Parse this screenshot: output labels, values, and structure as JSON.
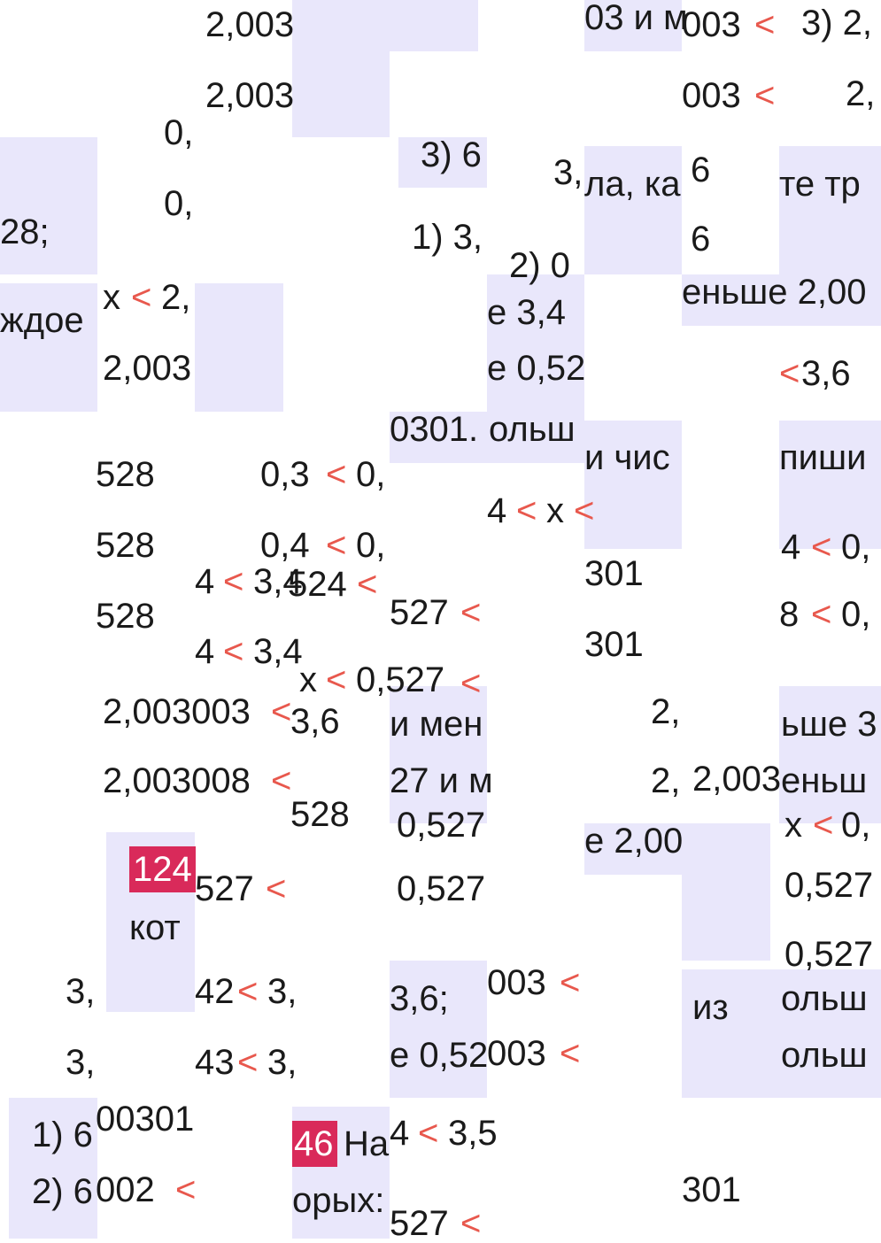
{
  "fragments": {
    "f1": "2,003",
    "f2": "2,003",
    "f3": "3) 6",
    "f4": "03 и м",
    "f5": "003",
    "f6": "<",
    "f7": "3) 2,",
    "f8": "003",
    "f9": "<",
    "f10": "2,",
    "f11": "0,",
    "f12": "0,",
    "f13": "3,",
    "f14": "ла, ка",
    "f15": "6",
    "f16": "те тр",
    "f17": "28;",
    "f18": "1) 3,",
    "f19": "2) 0",
    "f20": "6",
    "f21": "еньше 2,00",
    "f22": "ждое",
    "f23": "x",
    "f24": "<",
    "f25": "2,",
    "f26": "е 3,4",
    "f27": "е 0,52",
    "f28": "<",
    "f29": "3,6",
    "f30": "2,003",
    "f31": "0301.",
    "f32": "ольш",
    "f33": "и чис",
    "f34": "пиши",
    "f35": "528",
    "f36": "0,3",
    "f37": "<",
    "f38": "0,",
    "f39": "4",
    "f40": "<",
    "f41": "x",
    "f42": "<",
    "f43": "528",
    "f44": "0,4",
    "f45": "<",
    "f46": "0,",
    "f47": "4",
    "f48": "<",
    "f49": "3,4",
    "f50": "524",
    "f51": "<",
    "f52": "301",
    "f53": "4",
    "f54": "<",
    "f55": "0,",
    "f56": "528",
    "f57": "527",
    "f58": "<",
    "f59": "8",
    "f60": "<",
    "f61": "0,",
    "f62": "4",
    "f63": "<",
    "f64": "3,4",
    "f65": "301",
    "f66": "x",
    "f67": "<",
    "f68": "0,527",
    "f69": "<",
    "f70": "2,003003",
    "f71": "<",
    "f72": "3,6",
    "f73": "и мен",
    "f74": "2,",
    "f75": "ьше 3",
    "f76": "2,003008",
    "f77": "<",
    "f78": "27 и м",
    "f79": "2,",
    "f80": "2,003",
    "f81": "еньш",
    "f82": "528",
    "f83": "0,527",
    "f84": "x",
    "f85": "<",
    "f86": "0,",
    "f87": "124",
    "f88": "е 2,00",
    "f89": "527",
    "f90": "<",
    "f91": "0,527",
    "f92": "0,527",
    "f93": "кот",
    "f94": "0,527",
    "f95": "3,",
    "f96": "42",
    "f97": "<",
    "f98": "3,",
    "f99": "3,6;",
    "f100": "003",
    "f101": "<",
    "f102": "из",
    "f103": "ольш",
    "f104": "3,",
    "f105": "43",
    "f106": "<",
    "f107": "3,",
    "f108": "е 0,52",
    "f109": "003",
    "f110": "<",
    "f111": "ольш",
    "f112": "1) 6",
    "f113": "00301",
    "f114": "46",
    "f115": "На",
    "f116": "4",
    "f117": "<",
    "f118": "3,5",
    "f119": "2) 6",
    "f120": "002",
    "f121": "<",
    "f122": "орых:",
    "f123": "301",
    "f124": "527",
    "f125": "<"
  }
}
